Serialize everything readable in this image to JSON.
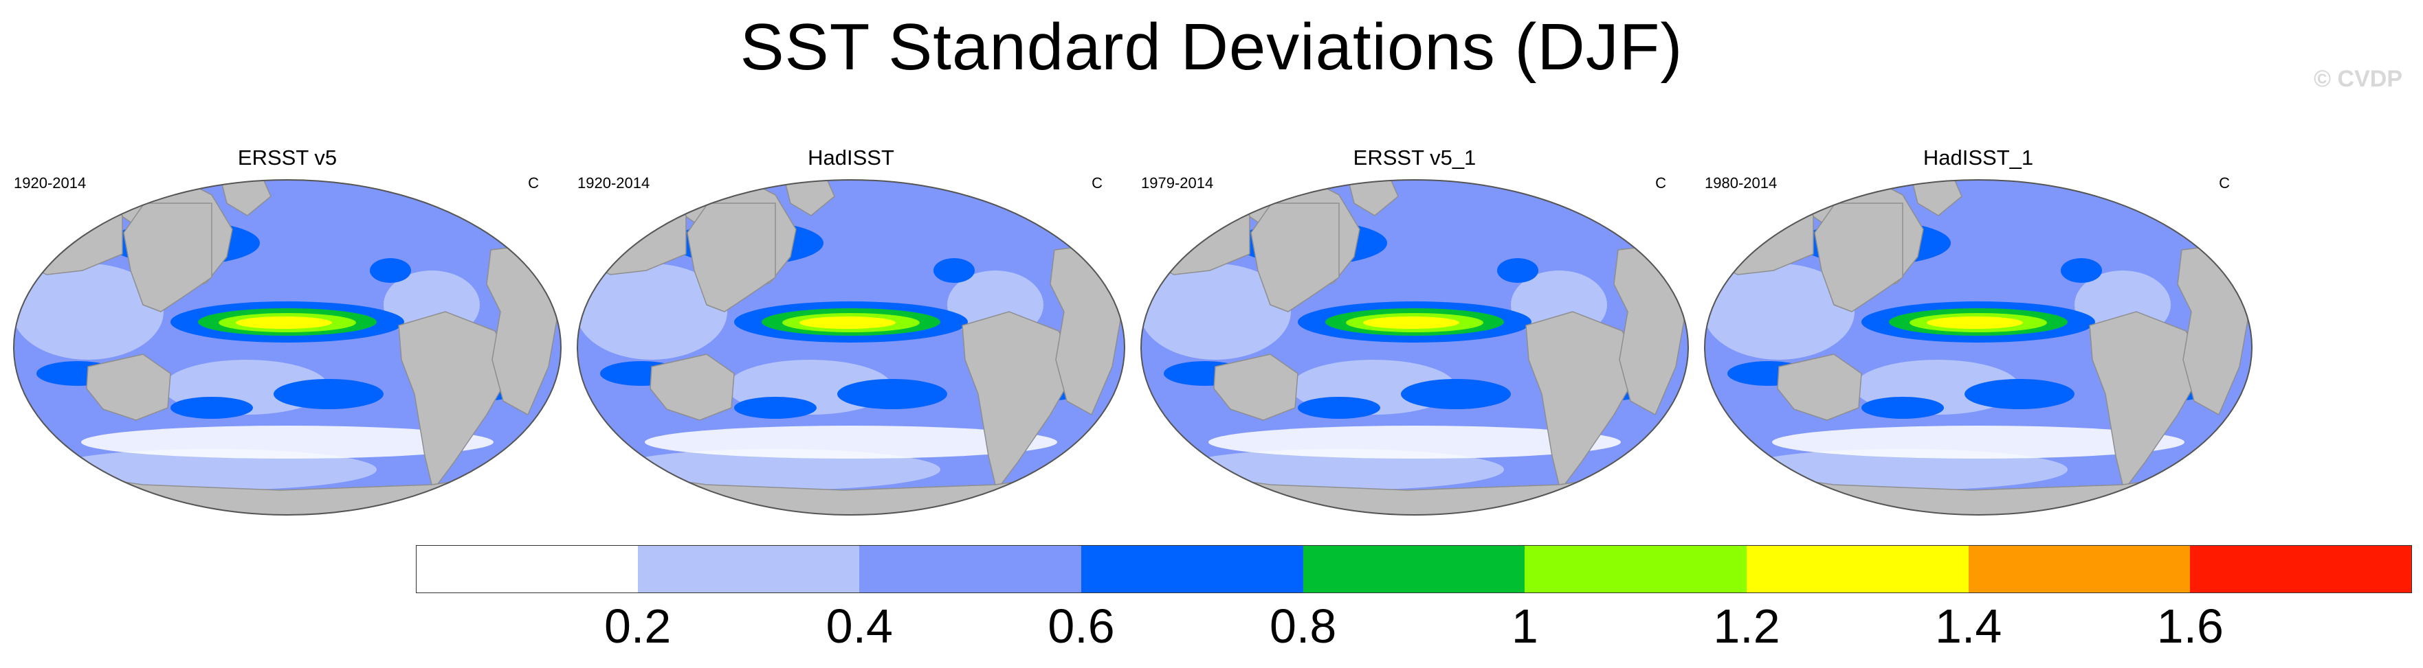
{
  "title": "SST Standard Deviations (DJF)",
  "copyright": "© CVDP",
  "panels": [
    {
      "title": "ERSST v5",
      "years": "1920-2014",
      "unit": "C",
      "nino_peak": "#ffff00"
    },
    {
      "title": "HadISST",
      "years": "1920-2014",
      "unit": "C",
      "nino_peak": "#ffff00"
    },
    {
      "title": "ERSST v5_1",
      "years": "1979-2014",
      "unit": "C",
      "nino_peak": "#ffff00"
    },
    {
      "title": "HadISST_1",
      "years": "1980-2014",
      "unit": "C",
      "nino_peak": "#ffff00"
    }
  ],
  "colorbar": {
    "colors": [
      "#ffffff",
      "#b4c4fa",
      "#7f96fa",
      "#0062ff",
      "#00c032",
      "#8cff00",
      "#ffff00",
      "#ff9900",
      "#ff1a00"
    ],
    "labels": [
      "0.2",
      "0.4",
      "0.6",
      "0.8",
      "1",
      "1.2",
      "1.4",
      "1.6"
    ]
  },
  "land_color": "#bdbdbd",
  "ocean_base_color": "#7f96fa"
}
